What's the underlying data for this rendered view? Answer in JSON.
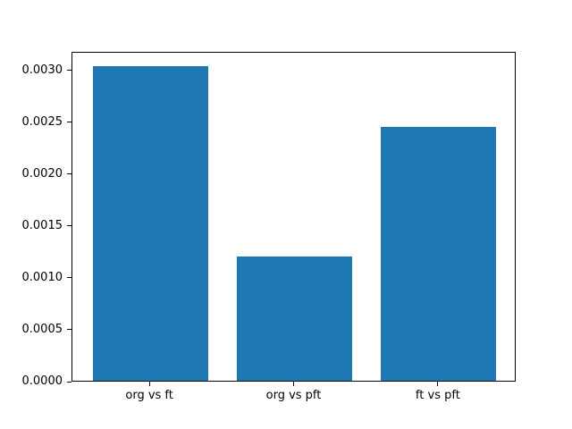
{
  "figure": {
    "background": "#ffffff",
    "spine_color": "#000000",
    "text_color": "#000000"
  },
  "chart_data": {
    "type": "bar",
    "title": "",
    "xlabel": "",
    "ylabel": "",
    "categories": [
      "org vs ft",
      "org vs pft",
      "ft vs pft"
    ],
    "values": [
      0.00303,
      0.0012,
      0.00245
    ],
    "bar_color": "#1f77b4",
    "bar_width": 0.8,
    "xlim": [
      -0.54,
      2.54
    ],
    "ylim": [
      0,
      0.00318
    ],
    "yticks": [
      0.0,
      0.0005,
      0.001,
      0.0015,
      0.002,
      0.0025,
      0.003
    ],
    "ytick_labels": [
      "0.0000",
      "0.0005",
      "0.0010",
      "0.0015",
      "0.0020",
      "0.0025",
      "0.0030"
    ],
    "grid": false,
    "legend": null
  }
}
